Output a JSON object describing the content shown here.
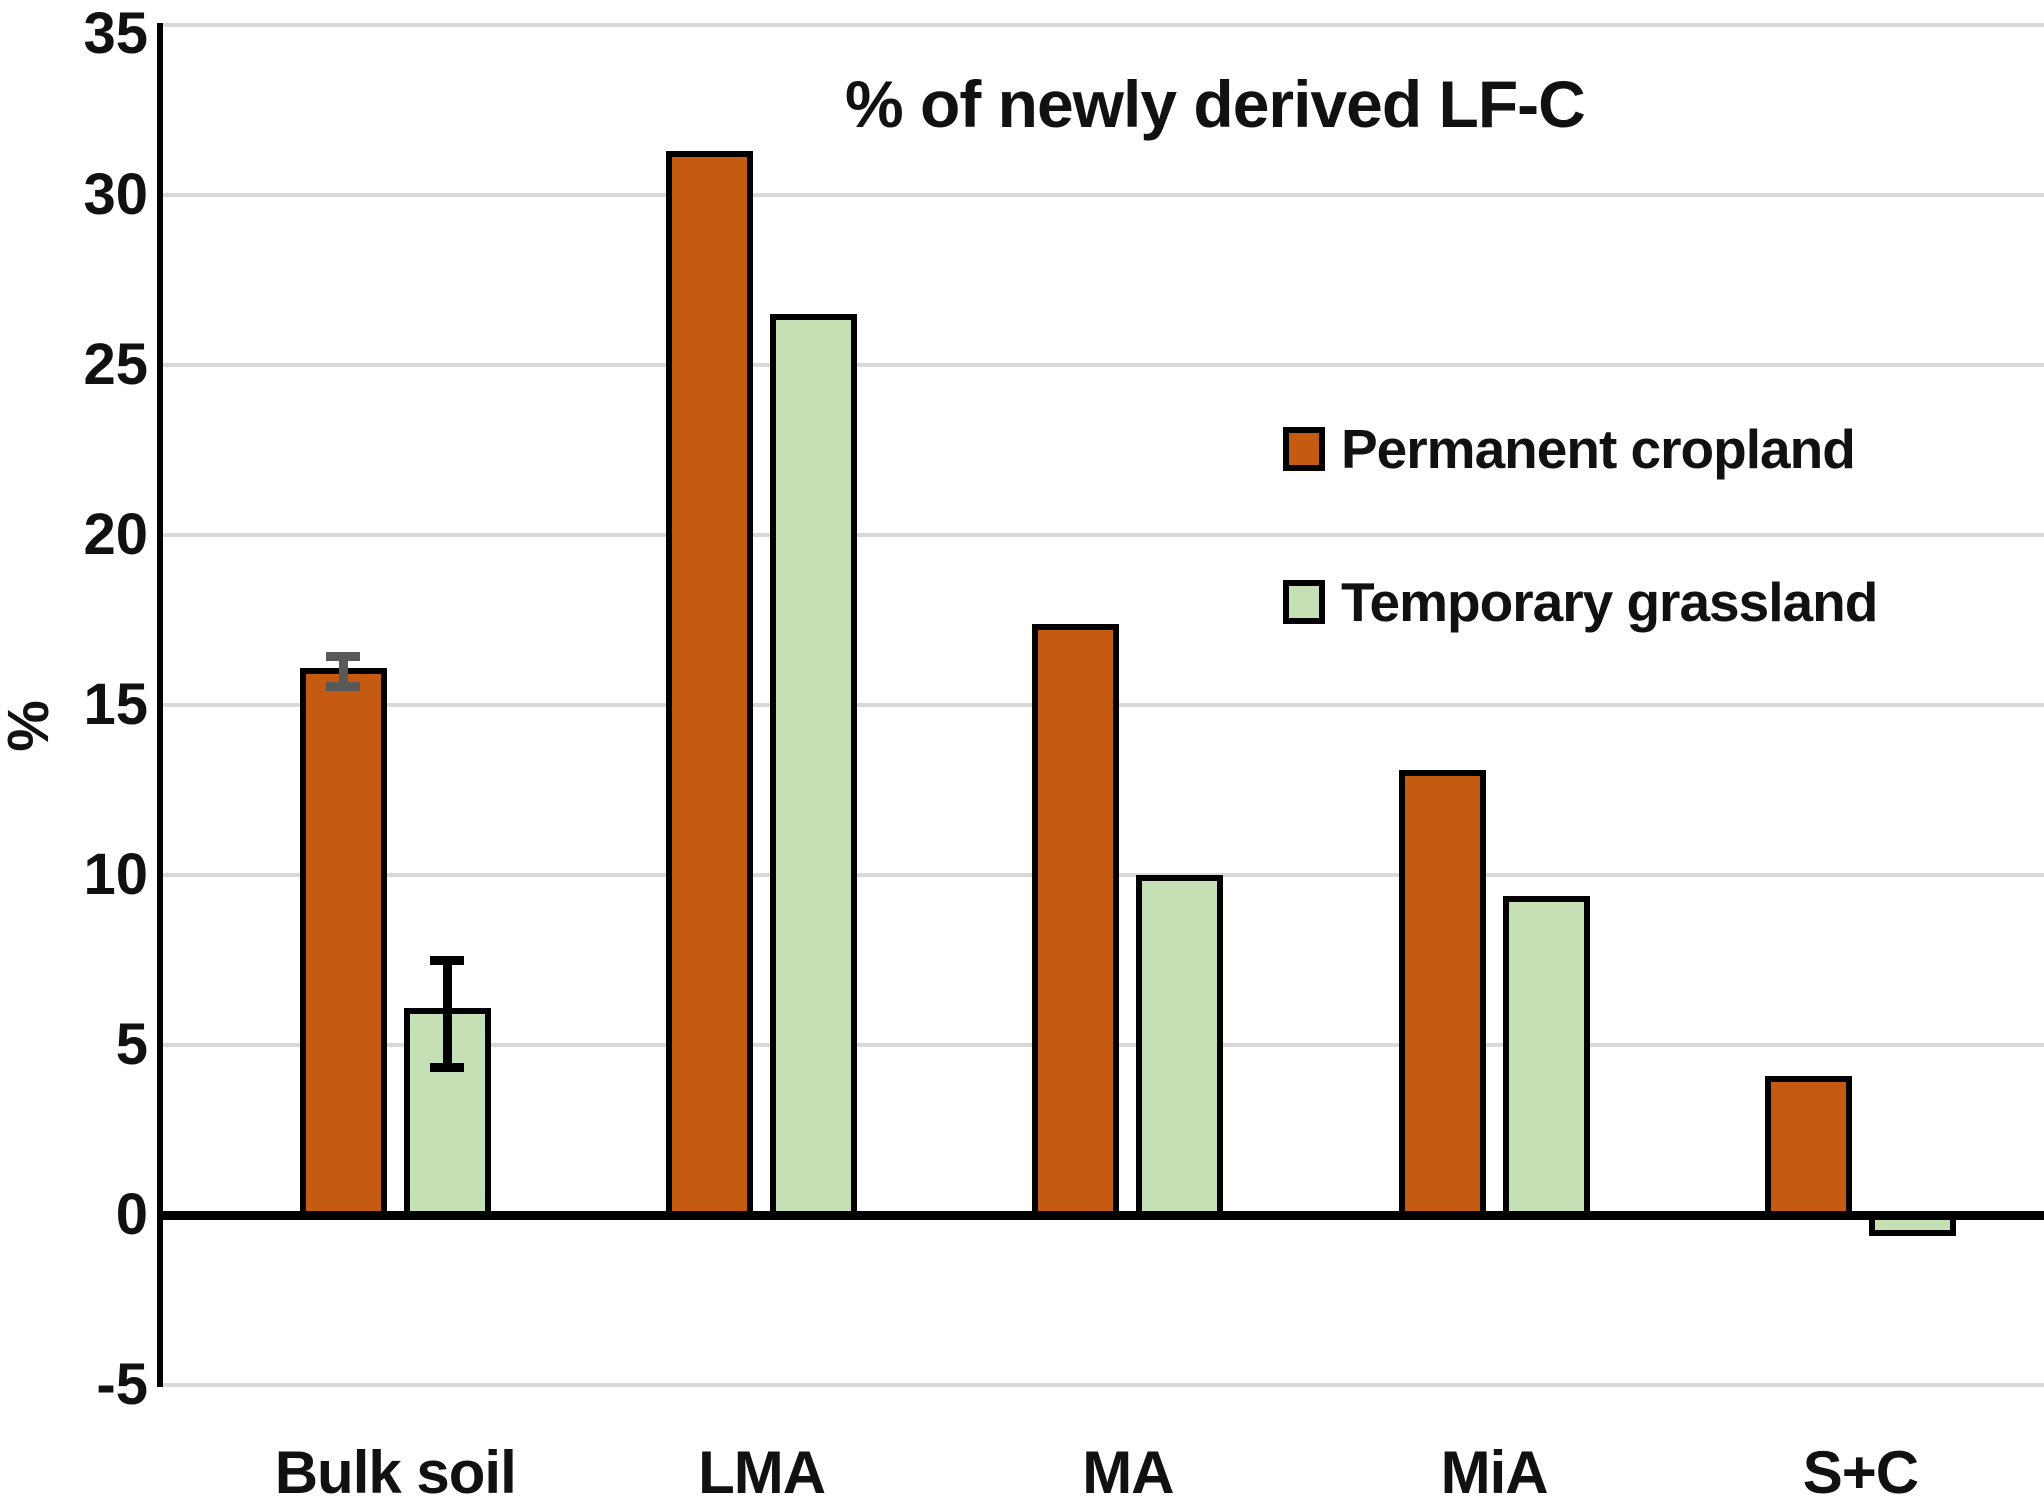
{
  "chart_data": {
    "type": "bar",
    "title": "% of newly derived LF-C",
    "xlabel": "",
    "ylabel": "%",
    "categories": [
      "Bulk soil",
      "LMA",
      "MA",
      "MiA",
      "S+C"
    ],
    "series": [
      {
        "name": "Permanent cropland",
        "color": "#C55A11",
        "values": [
          16.0,
          31.2,
          17.3,
          13.0,
          4.0
        ],
        "error_bar_color": "#595959",
        "errors": [
          {
            "low": 15.55,
            "high": 16.45
          },
          null,
          null,
          null,
          null
        ]
      },
      {
        "name": "Temporary grassland",
        "color": "#C5E0B4",
        "values": [
          6.0,
          26.4,
          9.9,
          9.3,
          -0.5
        ],
        "error_bar_color": "#000000",
        "errors": [
          {
            "low": 4.35,
            "high": 7.5
          },
          null,
          null,
          null,
          null
        ]
      }
    ],
    "y_ticks": [
      35,
      30,
      25,
      20,
      15,
      10,
      5,
      0,
      "-5"
    ],
    "y_tick_values": [
      35,
      30,
      25,
      20,
      15,
      10,
      5,
      0,
      -5
    ],
    "ylim": [
      -5,
      35
    ],
    "grid": true,
    "gridline_color": "#D9D9D9",
    "axis_color": "#000000",
    "legend_position": "inside-upper-right"
  }
}
